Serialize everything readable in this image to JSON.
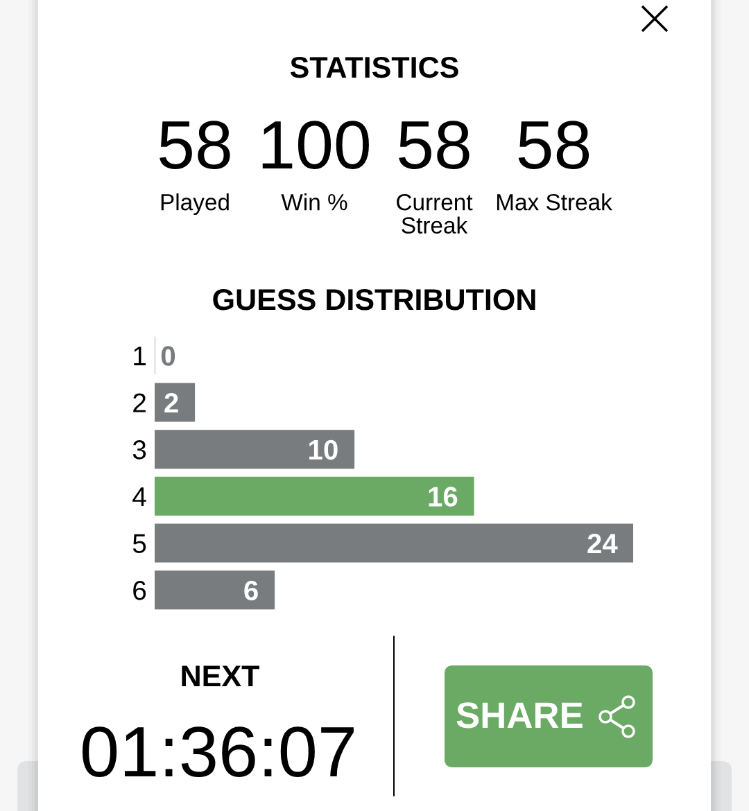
{
  "chart_data": [
    {
      "type": "other",
      "title": "STATISTICS",
      "annotations": [
        "58",
        "Played",
        "100",
        "Win %",
        "58",
        "Current Streak",
        "58",
        "Max Streak"
      ]
    },
    {
      "type": "bar",
      "title": "GUESS DISTRIBUTION",
      "orientation": "horizontal",
      "categories": [
        "1",
        "2",
        "3",
        "4",
        "5",
        "6"
      ],
      "values": [
        0,
        2,
        10,
        16,
        24,
        6
      ],
      "colors": [
        "#787c7e",
        "#787c7e",
        "#787c7e",
        "#6aaa64",
        "#787c7e",
        "#787c7e"
      ],
      "xlim": [
        0,
        24
      ],
      "tick_labels": "y",
      "data_labels": true
    },
    {
      "type": "other",
      "annotations": [
        "NEXT",
        "01:36:07",
        "SHARE"
      ]
    }
  ]
}
